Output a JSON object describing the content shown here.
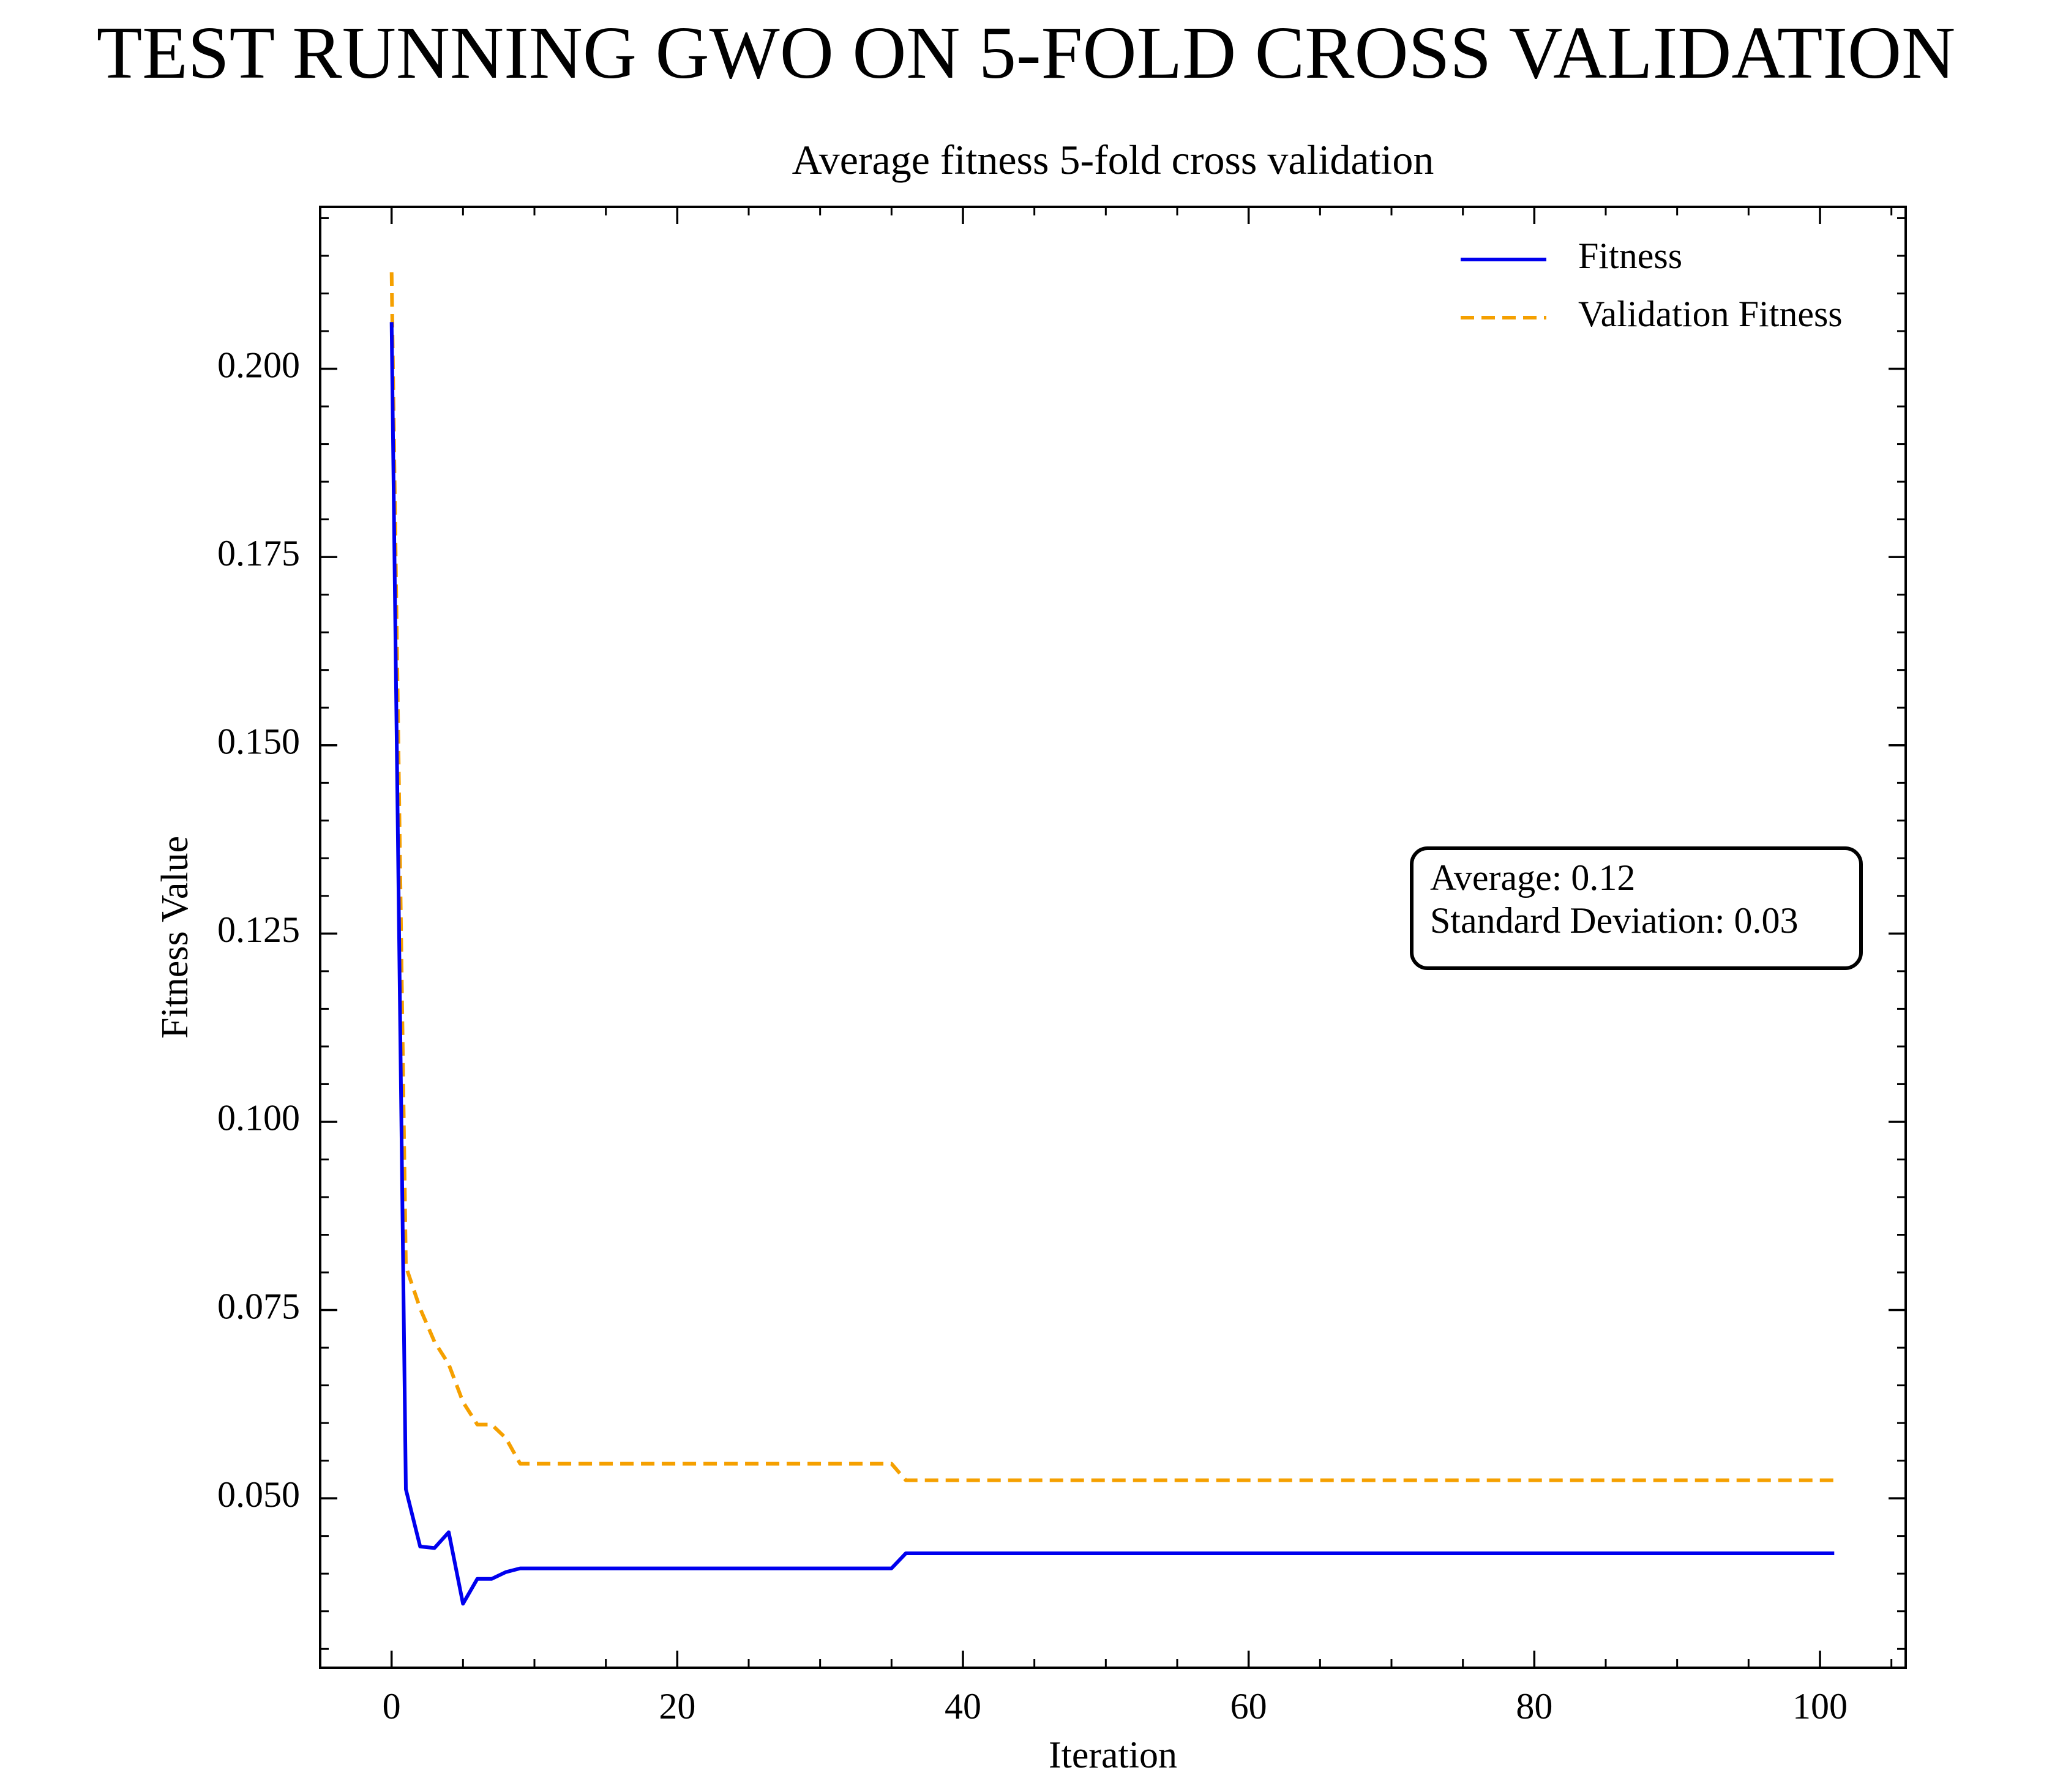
{
  "suptitle": "TEST RUNNING GWO ON 5-FOLD CROSS VALIDATION",
  "chart_data": {
    "type": "line",
    "title": "Average fitness 5-fold cross validation",
    "xlabel": "Iteration",
    "ylabel": "Fitness Value",
    "xlim": [
      -5,
      106
    ],
    "ylim": [
      0.0275,
      0.2215
    ],
    "xticks": [
      0,
      20,
      40,
      60,
      80,
      100
    ],
    "xtick_labels": [
      "0",
      "20",
      "40",
      "60",
      "80",
      "100"
    ],
    "yticks": [
      0.05,
      0.075,
      0.1,
      0.125,
      0.15,
      0.175,
      0.2
    ],
    "ytick_labels": [
      "0.050",
      "0.075",
      "0.100",
      "0.125",
      "0.150",
      "0.175",
      "0.200"
    ],
    "grid": false,
    "legend": "top-right",
    "x_start": 0,
    "x_end": 101,
    "series": [
      {
        "name": "Fitness",
        "color": "#0000ee",
        "style": "solid",
        "values": [
          0.2062,
          0.0512,
          0.0436,
          0.0434,
          0.0455,
          0.036,
          0.0393,
          0.0393,
          0.0402,
          0.0407,
          0.0407,
          0.0407,
          0.0407,
          0.0407,
          0.0407,
          0.0407,
          0.0407,
          0.0407,
          0.0407,
          0.0407,
          0.0407,
          0.0407,
          0.0407,
          0.0407,
          0.0407,
          0.0407,
          0.0407,
          0.0407,
          0.0407,
          0.0407,
          0.0407,
          0.0407,
          0.0407,
          0.0407,
          0.0407,
          0.0407,
          0.0427,
          0.0427,
          0.0427,
          0.0427,
          0.0427,
          0.0427,
          0.0427,
          0.0427,
          0.0427,
          0.0427,
          0.0427,
          0.0427,
          0.0427,
          0.0427,
          0.0427,
          0.0427,
          0.0427,
          0.0427,
          0.0427,
          0.0427,
          0.0427,
          0.0427,
          0.0427,
          0.0427,
          0.0427,
          0.0427,
          0.0427,
          0.0427,
          0.0427,
          0.0427,
          0.0427,
          0.0427,
          0.0427,
          0.0427,
          0.0427,
          0.0427,
          0.0427,
          0.0427,
          0.0427,
          0.0427,
          0.0427,
          0.0427,
          0.0427,
          0.0427,
          0.0427,
          0.0427,
          0.0427,
          0.0427,
          0.0427,
          0.0427,
          0.0427,
          0.0427,
          0.0427,
          0.0427,
          0.0427,
          0.0427,
          0.0427,
          0.0427,
          0.0427,
          0.0427,
          0.0427,
          0.0427,
          0.0427,
          0.0427,
          0.0427,
          0.0427
        ]
      },
      {
        "name": "Validation Fitness",
        "color": "#f5a000",
        "style": "dashed",
        "values": [
          0.2128,
          0.0808,
          0.0752,
          0.0708,
          0.0678,
          0.0628,
          0.0598,
          0.0598,
          0.058,
          0.0546,
          0.0546,
          0.0546,
          0.0546,
          0.0546,
          0.0546,
          0.0546,
          0.0546,
          0.0546,
          0.0546,
          0.0546,
          0.0546,
          0.0546,
          0.0546,
          0.0546,
          0.0546,
          0.0546,
          0.0546,
          0.0546,
          0.0546,
          0.0546,
          0.0546,
          0.0546,
          0.0546,
          0.0546,
          0.0546,
          0.0546,
          0.0524,
          0.0524,
          0.0524,
          0.0524,
          0.0524,
          0.0524,
          0.0524,
          0.0524,
          0.0524,
          0.0524,
          0.0524,
          0.0524,
          0.0524,
          0.0524,
          0.0524,
          0.0524,
          0.0524,
          0.0524,
          0.0524,
          0.0524,
          0.0524,
          0.0524,
          0.0524,
          0.0524,
          0.0524,
          0.0524,
          0.0524,
          0.0524,
          0.0524,
          0.0524,
          0.0524,
          0.0524,
          0.0524,
          0.0524,
          0.0524,
          0.0524,
          0.0524,
          0.0524,
          0.0524,
          0.0524,
          0.0524,
          0.0524,
          0.0524,
          0.0524,
          0.0524,
          0.0524,
          0.0524,
          0.0524,
          0.0524,
          0.0524,
          0.0524,
          0.0524,
          0.0524,
          0.0524,
          0.0524,
          0.0524,
          0.0524,
          0.0524,
          0.0524,
          0.0524,
          0.0524,
          0.0524,
          0.0524,
          0.0524,
          0.0524,
          0.0524
        ]
      }
    ],
    "annotation": {
      "lines": [
        "Average: 0.12",
        "Standard Deviation: 0.03"
      ],
      "placement": "right-middle"
    }
  }
}
